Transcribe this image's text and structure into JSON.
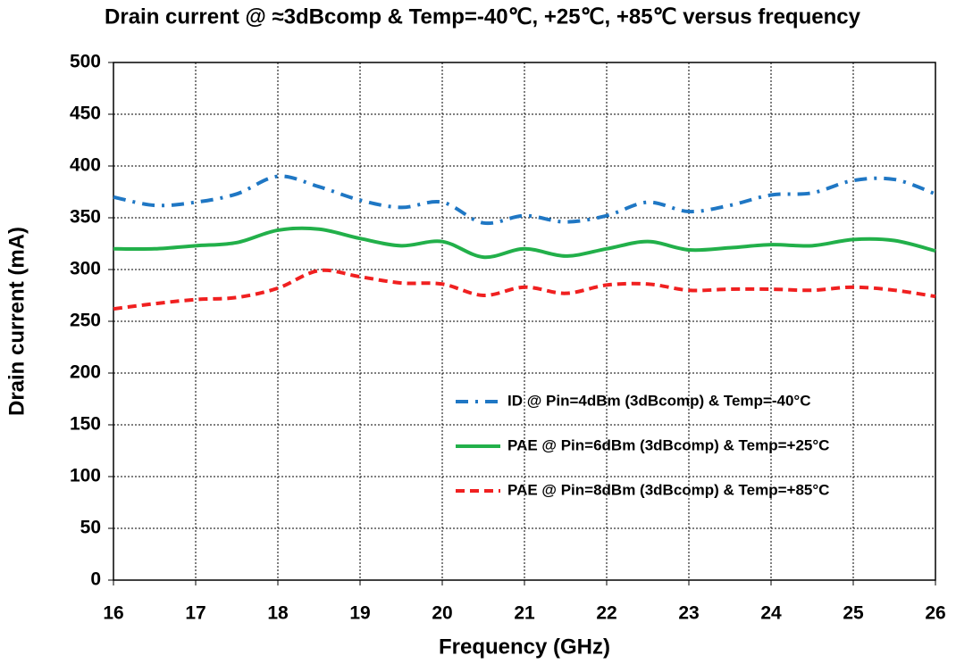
{
  "chart_data": {
    "type": "line",
    "title": "Drain current @ ≈3dBcomp & Temp=-40℃, +25℃, +85℃ versus frequency",
    "xlabel": "Frequency (GHz)",
    "ylabel": "Drain current (mA)",
    "x": [
      16,
      16.5,
      17,
      17.5,
      18,
      18.5,
      19,
      19.5,
      20,
      20.5,
      21,
      21.5,
      22,
      22.5,
      23,
      23.5,
      24,
      24.5,
      25,
      25.5,
      26
    ],
    "series": [
      {
        "name": "ID @ Pin=4dBm (3dBcomp) & Temp=-40°C",
        "color": "#1f77c4",
        "dash": "dashdot",
        "values": [
          370,
          362,
          365,
          373,
          390,
          380,
          367,
          360,
          365,
          345,
          352,
          346,
          352,
          365,
          356,
          362,
          372,
          374,
          386,
          387,
          373
        ]
      },
      {
        "name": "PAE @ Pin=6dBm (3dBcomp) & Temp=+25°C",
        "color": "#22b04a",
        "dash": "solid",
        "values": [
          320,
          320,
          323,
          326,
          338,
          339,
          330,
          323,
          327,
          312,
          320,
          313,
          320,
          327,
          319,
          321,
          324,
          323,
          329,
          328,
          318
        ]
      },
      {
        "name": "PAE @ Pin=8dBm (3dBcomp) & Temp=+85°C",
        "color": "#f02020",
        "dash": "dashed",
        "values": [
          262,
          267,
          271,
          273,
          282,
          299,
          293,
          287,
          286,
          275,
          283,
          277,
          285,
          286,
          280,
          281,
          281,
          280,
          283,
          280,
          274
        ]
      }
    ],
    "xlim": [
      16,
      26
    ],
    "xticks": [
      16,
      17,
      18,
      19,
      20,
      21,
      22,
      23,
      24,
      25,
      26
    ],
    "ylim": [
      0,
      500
    ],
    "yticks": [
      0,
      50,
      100,
      150,
      200,
      250,
      300,
      350,
      400,
      450,
      500
    ],
    "grid": true,
    "legend": "lower right"
  }
}
